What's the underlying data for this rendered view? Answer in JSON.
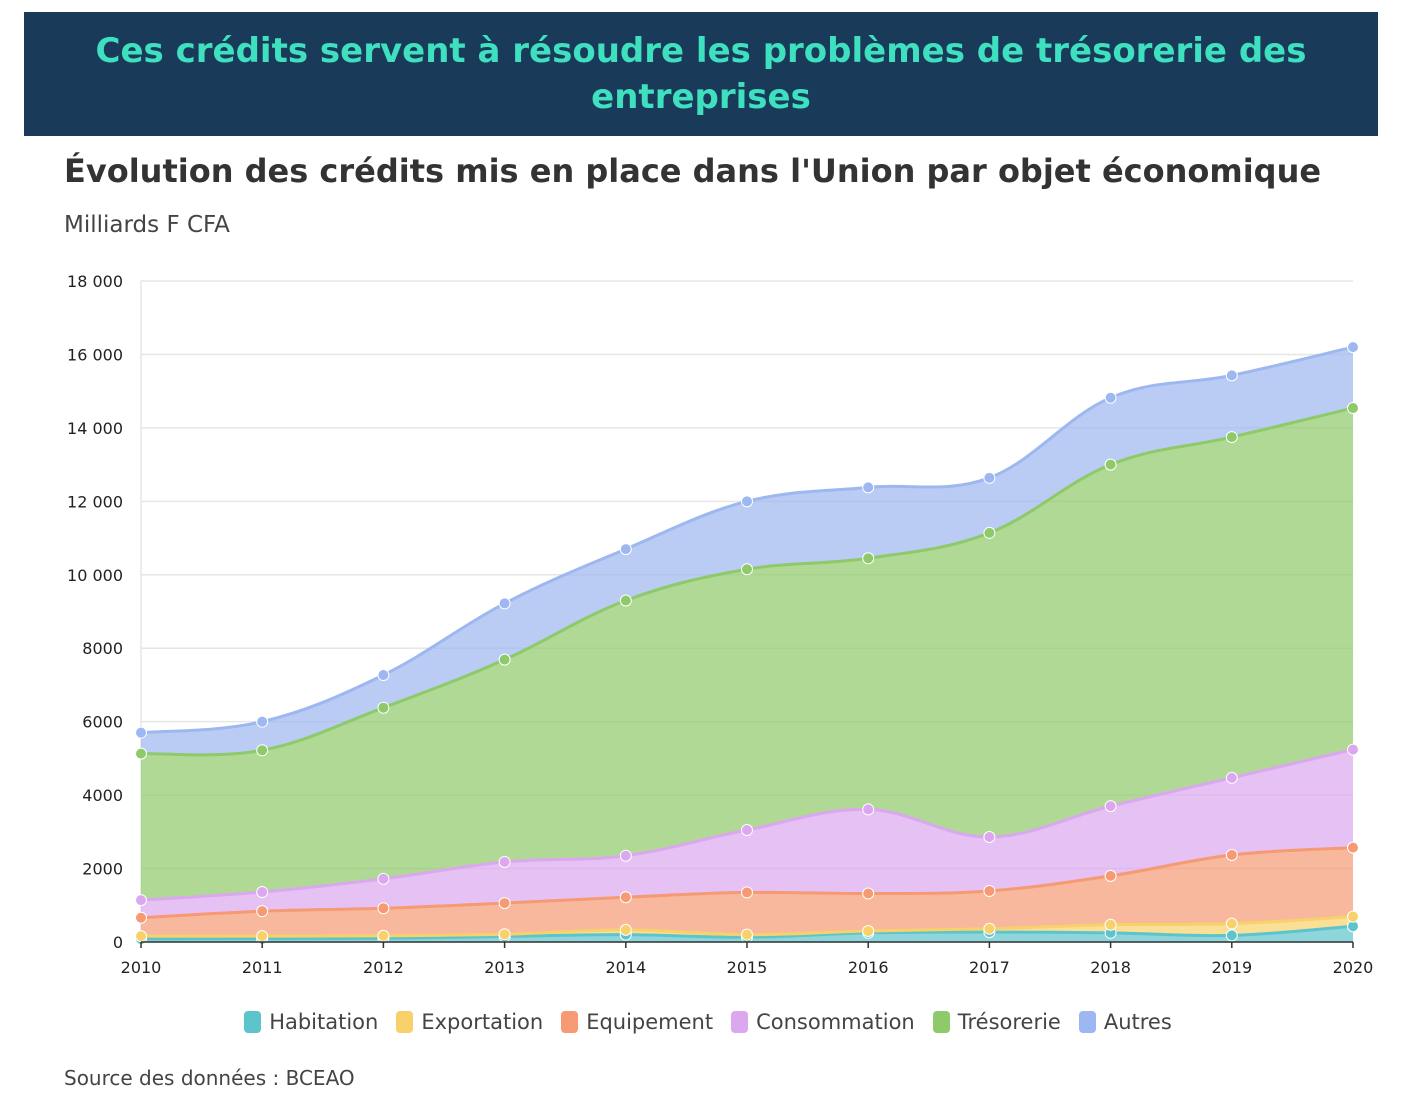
{
  "banner": {
    "text": "Ces crédits servent à résoudre les problèmes de trésorerie des entreprises"
  },
  "chart_data": {
    "type": "area",
    "stacked": true,
    "title": "Évolution des crédits mis en place dans l'Union par objet économique",
    "subtitle": "Milliards F CFA",
    "source": "Source des données : BCEAO",
    "x": [
      "2010",
      "2011",
      "2012",
      "2013",
      "2014",
      "2015",
      "2016",
      "2017",
      "2018",
      "2019",
      "2020"
    ],
    "ylim": [
      0,
      18000
    ],
    "yticks": [
      0,
      2000,
      4000,
      6000,
      8000,
      10000,
      12000,
      14000,
      16000,
      18000
    ],
    "ytick_labels": [
      "0",
      "2000",
      "4000",
      "6000",
      "8000",
      "10 000",
      "12 000",
      "14 000",
      "16 000",
      "18 000"
    ],
    "grid": true,
    "legend_position": "bottom",
    "series": [
      {
        "name": "Habitation",
        "color": "#5ec4cc",
        "values": [
          80,
          90,
          100,
          150,
          200,
          130,
          250,
          270,
          250,
          180,
          430
        ]
      },
      {
        "name": "Exportation",
        "color": "#f8d16a",
        "values": [
          80,
          70,
          70,
          60,
          130,
          70,
          50,
          90,
          220,
          320,
          260
        ]
      },
      {
        "name": "Equipement",
        "color": "#f59a73",
        "values": [
          500,
          680,
          750,
          850,
          890,
          1150,
          1020,
          1030,
          1330,
          1870,
          1880
        ]
      },
      {
        "name": "Consommation",
        "color": "#dba7ee",
        "values": [
          480,
          520,
          800,
          1120,
          1130,
          1700,
          2290,
          1470,
          1900,
          2100,
          2670
        ]
      },
      {
        "name": "Trésorerie",
        "color": "#8ec96a",
        "values": [
          3990,
          3860,
          4660,
          5510,
          6950,
          7100,
          6840,
          8280,
          9300,
          9280,
          9300
        ]
      },
      {
        "name": "Autres",
        "color": "#9db7f0",
        "values": [
          570,
          780,
          890,
          1530,
          1400,
          1850,
          1930,
          1500,
          1820,
          1680,
          1660
        ]
      }
    ]
  }
}
